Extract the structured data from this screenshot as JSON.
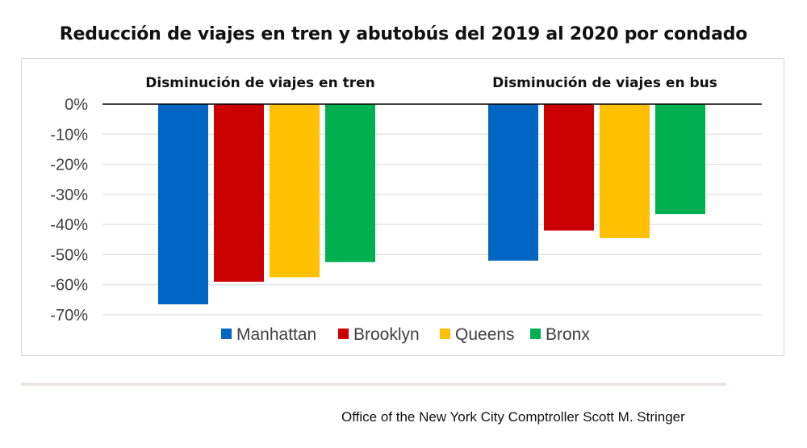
{
  "title": "Reducción de viajes en tren y abutobús del 2019 al 2020 por condado",
  "source": "Office of the New York City Comptroller Scott M. Stringer",
  "chart_data": {
    "type": "bar",
    "ylim": [
      -70,
      0
    ],
    "yticks": [
      0,
      -10,
      -20,
      -30,
      -40,
      -50,
      -60,
      -70
    ],
    "ytick_labels": [
      "0%",
      "-10%",
      "-20%",
      "-30%",
      "-40%",
      "-50%",
      "-60%",
      "-70%"
    ],
    "grid": true,
    "legend": "bottom",
    "categories": [
      "Disminución de viajes en tren",
      "Disminución de viajes en bus"
    ],
    "series": [
      {
        "name": "Manhattan",
        "color": "#0066c4",
        "values": [
          -66.5,
          -52
        ]
      },
      {
        "name": "Brooklyn",
        "color": "#cc0000",
        "values": [
          -59,
          -42
        ]
      },
      {
        "name": "Queens",
        "color": "#ffc000",
        "values": [
          -57.5,
          -44.5
        ]
      },
      {
        "name": "Bronx",
        "color": "#00b050",
        "values": [
          -52.5,
          -36.5
        ]
      }
    ]
  }
}
